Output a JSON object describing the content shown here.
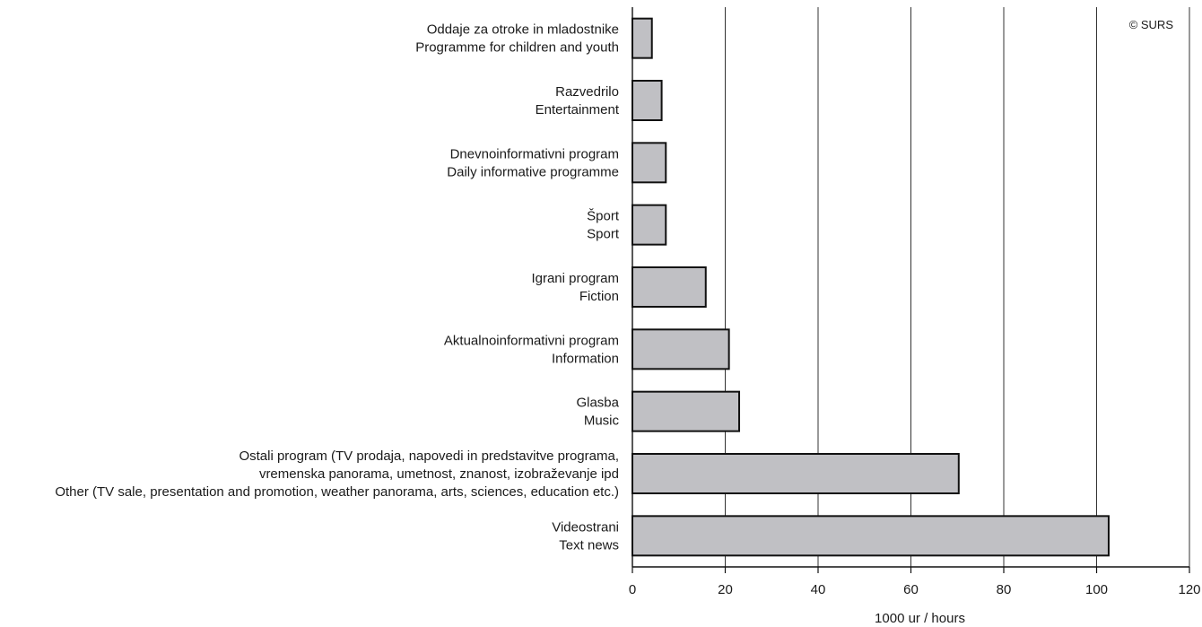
{
  "chart_data": {
    "type": "bar",
    "orientation": "horizontal",
    "categories": [
      [
        "Oddaje za otroke in mladostnike",
        "Programme for children and youth"
      ],
      [
        "Razvedrilo",
        "Entertainment"
      ],
      [
        "Dnevnoinformativni program",
        "Daily informative programme"
      ],
      [
        "Šport",
        "Sport"
      ],
      [
        "Igrani program",
        "Fiction"
      ],
      [
        "Aktualnoinformativni program",
        "Information"
      ],
      [
        "Glasba",
        "Music"
      ],
      [
        "Ostali program (TV prodaja, napovedi in predstavitve programa,",
        "vremenska panorama, umetnost, znanost, izobraževanje ipd",
        "Other (TV sale, presentation and promotion, weather panorama, arts, sciences, education etc.)"
      ],
      [
        "Videostrani",
        "Text news"
      ]
    ],
    "values": [
      4.2,
      6.3,
      7.2,
      7.2,
      15.8,
      20.8,
      23.0,
      70.3,
      102.6
    ],
    "xlabel": "1000 ur / hours",
    "xlim": [
      0,
      120
    ],
    "xticks": [
      0,
      20,
      40,
      60,
      80,
      100,
      120
    ],
    "grid": "vertical",
    "bar_color": "#c0c0c4",
    "bar_edge_color": "#111111",
    "credit": "© SURS"
  }
}
